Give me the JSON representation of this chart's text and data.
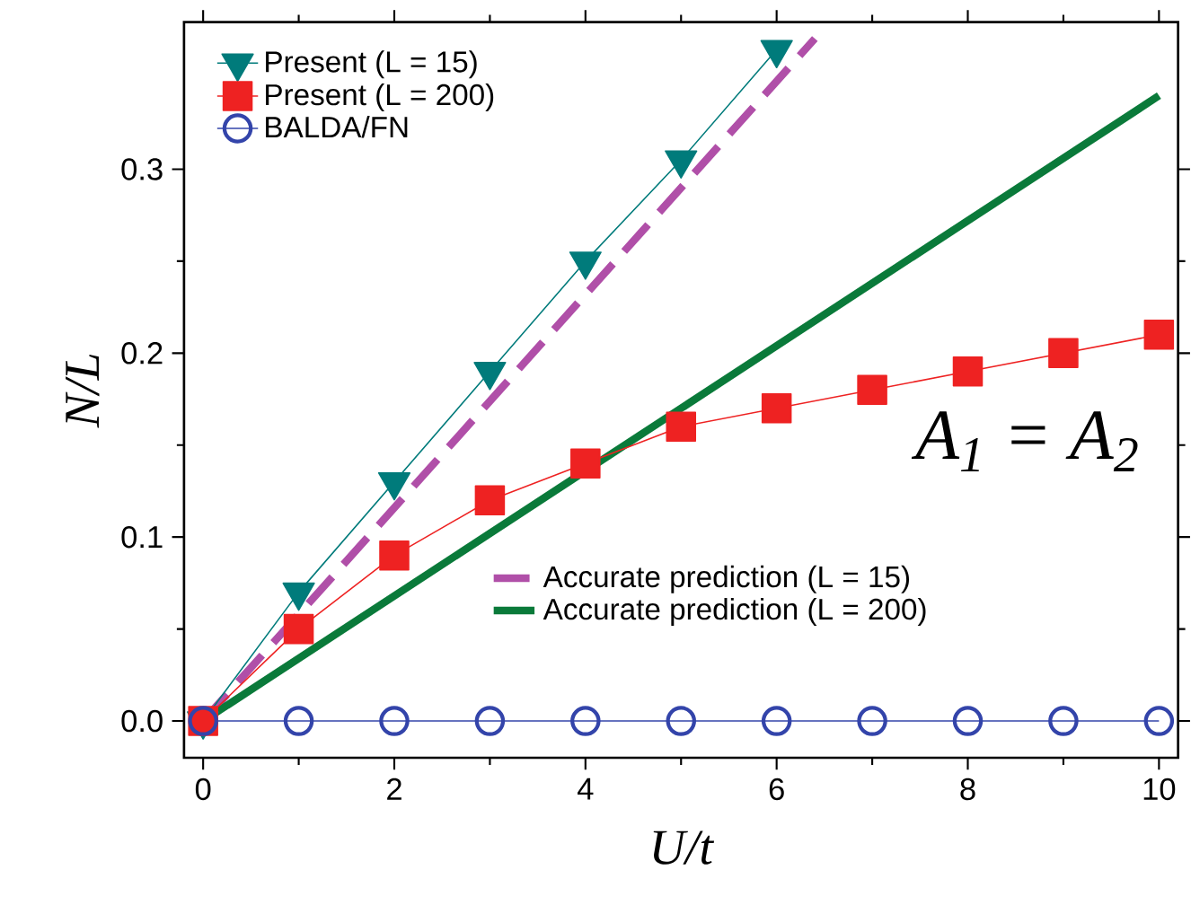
{
  "chart_data": {
    "type": "line",
    "xlabel": "U/t",
    "ylabel": "N/L",
    "annotations": [
      "*A*$_{1}$ = *A*$_{2}$"
    ],
    "xlim": [
      -0.2,
      10.2
    ],
    "xticks": [
      0,
      2,
      4,
      6,
      8,
      10
    ],
    "ylim": [
      -0.02,
      0.38
    ],
    "yticks": [
      {
        "value": 0,
        "label": "0.0"
      },
      {
        "value": 0.1,
        "label": "0.1"
      },
      {
        "value": 0.2,
        "label": "0.2"
      },
      {
        "value": 0.3,
        "label": "0.3"
      }
    ],
    "legend": "top left",
    "grid": false,
    "series": [
      {
        "name": "Present (L = 15)",
        "color": "#007b7b",
        "marker": "triangle",
        "line_style": "solid",
        "x": [
          0,
          1,
          2,
          3,
          4,
          5,
          6
        ],
        "values": [
          0,
          0.07,
          0.13,
          0.19,
          0.25,
          0.305,
          0.365
        ]
      },
      {
        "name": "Present (L = 200)",
        "color": "#ee2222",
        "marker": "square",
        "line_style": "solid",
        "x": [
          0,
          1,
          2,
          3,
          4,
          5,
          6,
          7,
          8,
          9,
          10
        ],
        "values": [
          0,
          0.05,
          0.09,
          0.12,
          0.14,
          0.16,
          0.17,
          0.18,
          0.19,
          0.2,
          0.21
        ]
      },
      {
        "name": "BALDA/FN",
        "color": "#3344aa",
        "marker": "circle",
        "line_style": "solid",
        "x": [
          0,
          1,
          2,
          3,
          4,
          5,
          6,
          7,
          8,
          9,
          10
        ],
        "values": [
          0,
          0,
          0,
          0,
          0,
          0,
          0,
          0,
          0,
          0,
          0
        ]
      },
      {
        "name": "Accurate prediction (L = 15)",
        "color": "#b04fa8",
        "marker": "none",
        "line_style": "dashed",
        "x": [
          0,
          6.4
        ],
        "values": [
          0,
          0.371
        ]
      },
      {
        "name": "Accurate prediction (L = 200)",
        "color": "#0a7a3a",
        "marker": "none",
        "line_style": "solid",
        "x": [
          0,
          10
        ],
        "values": [
          0,
          0.34
        ]
      }
    ]
  }
}
